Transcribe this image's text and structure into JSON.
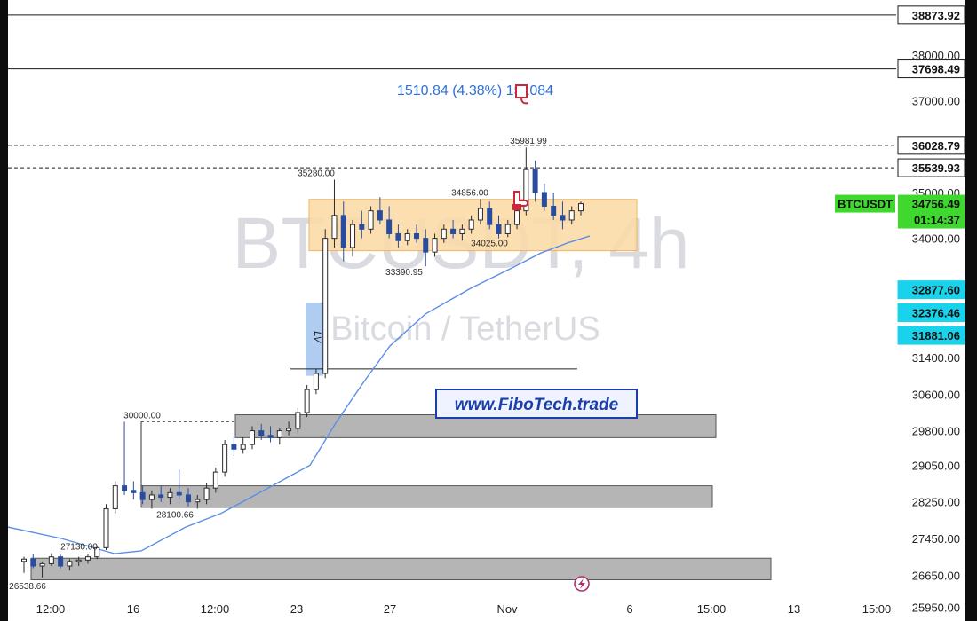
{
  "chart_data": {
    "type": "candlestick",
    "symbol": "BTCUSDT",
    "watermark": {
      "line1": "BTCUSDT, 4h",
      "line2": "Bitcoin / TetherUS"
    },
    "ylim": [
      25650,
      39200
    ],
    "y_ticks": [
      {
        "value": 38000,
        "label": "38000.00"
      },
      {
        "value": 37000,
        "label": "37000.00"
      },
      {
        "value": 35000,
        "label": "35000.00"
      },
      {
        "value": 34000,
        "label": "34000.00"
      },
      {
        "value": 31400,
        "label": "31400.00"
      },
      {
        "value": 30600,
        "label": "30600.00"
      },
      {
        "value": 29800,
        "label": "29800.00"
      },
      {
        "value": 29050,
        "label": "29050.00"
      },
      {
        "value": 28250,
        "label": "28250.00"
      },
      {
        "value": 27450,
        "label": "27450.00"
      },
      {
        "value": 26650,
        "label": "26650.00"
      },
      {
        "value": 25950,
        "label": "25950.00"
      }
    ],
    "x_ticks": [
      "12:00",
      "16",
      "12:00",
      "23",
      "27",
      "Nov",
      "6",
      "15:00",
      "13",
      "15:00"
    ],
    "price_tags": [
      {
        "value": 38873.92,
        "label": "38873.92",
        "style": "white"
      },
      {
        "value": 37698.49,
        "label": "37698.49",
        "style": "white"
      },
      {
        "value": 36028.79,
        "label": "36028.79",
        "style": "white"
      },
      {
        "value": 35539.93,
        "label": "35539.93",
        "style": "white"
      },
      {
        "value": 32877.6,
        "label": "32877.60",
        "style": "cyan"
      },
      {
        "value": 32376.46,
        "label": "32376.46",
        "style": "cyan"
      },
      {
        "value": 31881.06,
        "label": "31881.06",
        "style": "cyan"
      }
    ],
    "current_price": {
      "value": 34756.49,
      "label": "34756.49",
      "countdown": "01:14:37",
      "symbol_label": "BTCUSDT"
    },
    "levels": [
      {
        "value": 38873.92,
        "style": "solid"
      },
      {
        "value": 37698.49,
        "style": "solid"
      },
      {
        "value": 36028.79,
        "style": "dashed"
      },
      {
        "value": 35539.93,
        "style": "dashed"
      }
    ],
    "annotations": [
      {
        "label": "35280.00",
        "value": 35280
      },
      {
        "label": "34856.00",
        "value": 34856
      },
      {
        "label": "33390.95",
        "value": 33390.95
      },
      {
        "label": "34025.00",
        "value": 34025
      },
      {
        "label": "30000.00",
        "value": 30000
      },
      {
        "label": "28100.66",
        "value": 28100.66
      },
      {
        "label": "27130.00",
        "value": 27130
      },
      {
        "label": "26538.66",
        "value": 26538.66
      },
      {
        "label": "35981.99",
        "value": 35981.99
      }
    ],
    "measure_label": "1510.84 (4.38%) 151084",
    "range_box": {
      "top": 34850,
      "bottom": 33730
    },
    "zones": [
      {
        "top": 30150,
        "bottom": 29650
      },
      {
        "top": 28600,
        "bottom": 28130
      },
      {
        "top": 27020,
        "bottom": 26550
      }
    ],
    "lv_label": "LV",
    "promo_text": "www.FiboTech.trade",
    "ma_points": [
      [
        0,
        27700
      ],
      [
        60,
        27450
      ],
      [
        120,
        27120
      ],
      [
        150,
        27180
      ],
      [
        200,
        27700
      ],
      [
        240,
        28000
      ],
      [
        290,
        28520
      ],
      [
        340,
        29050
      ],
      [
        370,
        30000
      ],
      [
        400,
        30850
      ],
      [
        430,
        31650
      ],
      [
        470,
        32350
      ],
      [
        520,
        32900
      ],
      [
        570,
        33380
      ],
      [
        600,
        33680
      ],
      [
        630,
        33900
      ],
      [
        655,
        34050
      ]
    ],
    "candles": [
      [
        26950,
        27050,
        26700,
        27000
      ],
      [
        27000,
        27120,
        26800,
        26850
      ],
      [
        26850,
        26950,
        26600,
        26900
      ],
      [
        26900,
        27130,
        26850,
        27050
      ],
      [
        27050,
        27100,
        26800,
        26850
      ],
      [
        26850,
        27000,
        26750,
        26950
      ],
      [
        26950,
        27050,
        26850,
        26980
      ],
      [
        26980,
        27100,
        26900,
        27050
      ],
      [
        27050,
        27300,
        27000,
        27250
      ],
      [
        27250,
        28200,
        27200,
        28100
      ],
      [
        28100,
        28700,
        28000,
        28600
      ],
      [
        28600,
        30000,
        28400,
        28500
      ],
      [
        28500,
        28700,
        28300,
        28450
      ],
      [
        28450,
        28600,
        28200,
        28300
      ],
      [
        28300,
        28500,
        28100,
        28400
      ],
      [
        28400,
        28600,
        28250,
        28350
      ],
      [
        28350,
        28550,
        28200,
        28450
      ],
      [
        28450,
        28950,
        28300,
        28400
      ],
      [
        28400,
        28550,
        28150,
        28250
      ],
      [
        28250,
        28400,
        28100,
        28300
      ],
      [
        28300,
        28650,
        28200,
        28550
      ],
      [
        28550,
        29000,
        28450,
        28900
      ],
      [
        28900,
        29600,
        28800,
        29500
      ],
      [
        29500,
        29700,
        29250,
        29400
      ],
      [
        29400,
        29650,
        29300,
        29500
      ],
      [
        29500,
        29900,
        29400,
        29800
      ],
      [
        29800,
        29950,
        29600,
        29700
      ],
      [
        29700,
        29900,
        29550,
        29650
      ],
      [
        29650,
        29850,
        29500,
        29800
      ],
      [
        29800,
        30000,
        29700,
        29850
      ],
      [
        29850,
        30300,
        29750,
        30200
      ],
      [
        30200,
        30800,
        30100,
        30700
      ],
      [
        30700,
        31150,
        30600,
        31050
      ],
      [
        31050,
        34200,
        30950,
        34000
      ],
      [
        34000,
        35280,
        33800,
        34500
      ],
      [
        34500,
        34800,
        33500,
        33800
      ],
      [
        33800,
        34400,
        33600,
        34300
      ],
      [
        34300,
        34600,
        34000,
        34200
      ],
      [
        34200,
        34700,
        34100,
        34600
      ],
      [
        34600,
        34900,
        34300,
        34400
      ],
      [
        34400,
        34700,
        34000,
        34100
      ],
      [
        34100,
        34300,
        33800,
        33950
      ],
      [
        33950,
        34200,
        33850,
        34100
      ],
      [
        34100,
        34300,
        33900,
        34000
      ],
      [
        34000,
        34200,
        33390,
        33700
      ],
      [
        33700,
        34100,
        33600,
        34000
      ],
      [
        34000,
        34300,
        33900,
        34200
      ],
      [
        34200,
        34400,
        34000,
        34100
      ],
      [
        34100,
        34300,
        33950,
        34200
      ],
      [
        34200,
        34500,
        34100,
        34400
      ],
      [
        34400,
        34856,
        34300,
        34650
      ],
      [
        34650,
        34800,
        34200,
        34300
      ],
      [
        34300,
        34500,
        34000,
        34100
      ],
      [
        34100,
        34400,
        34025,
        34300
      ],
      [
        34300,
        34700,
        34200,
        34600
      ],
      [
        34600,
        35981,
        34500,
        35500
      ],
      [
        35500,
        35700,
        34800,
        35000
      ],
      [
        35000,
        35200,
        34600,
        34700
      ],
      [
        34700,
        35000,
        34400,
        34500
      ],
      [
        34500,
        34800,
        34200,
        34400
      ],
      [
        34400,
        34700,
        34300,
        34600
      ],
      [
        34600,
        34800,
        34500,
        34756
      ]
    ]
  }
}
